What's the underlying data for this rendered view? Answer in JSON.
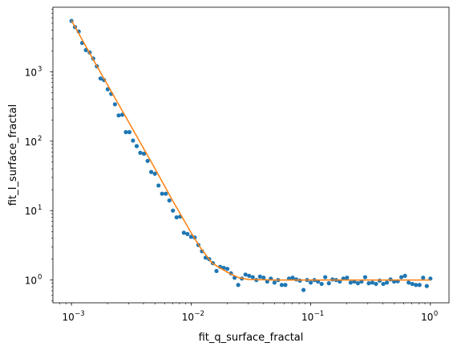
{
  "chart_data": {
    "type": "scatter",
    "xlabel": "fit_q_surface_fractal",
    "ylabel": "fit_I_surface_fractal",
    "xscale": "log",
    "yscale": "log",
    "xlim": [
      0.0007,
      1.43
    ],
    "ylim": [
      0.47,
      8500
    ],
    "grid": false,
    "legend": "none",
    "x_ticks": [
      {
        "value": 0.001,
        "base": "10",
        "exp": "−3"
      },
      {
        "value": 0.01,
        "base": "10",
        "exp": "−2"
      },
      {
        "value": 0.1,
        "base": "10",
        "exp": "−1"
      },
      {
        "value": 1,
        "base": "10",
        "exp": "0"
      }
    ],
    "y_ticks": [
      {
        "value": 1,
        "base": "10",
        "exp": "0"
      },
      {
        "value": 10,
        "base": "10",
        "exp": "1"
      },
      {
        "value": 100,
        "base": "10",
        "exp": "2"
      },
      {
        "value": 1000,
        "base": "10",
        "exp": "3"
      }
    ],
    "series": [
      {
        "style": "points",
        "color": "#1f77b4",
        "x": [
          0.001,
          0.00107,
          0.00115,
          0.00123,
          0.00132,
          0.00142,
          0.00152,
          0.00163,
          0.00175,
          0.00187,
          0.00201,
          0.00215,
          0.00231,
          0.00248,
          0.00266,
          0.00285,
          0.00305,
          0.00327,
          0.00351,
          0.00376,
          0.00404,
          0.00433,
          0.00464,
          0.00498,
          0.00534,
          0.00572,
          0.00614,
          0.00658,
          0.00705,
          0.00756,
          0.00811,
          0.0087,
          0.00933,
          0.01,
          0.01072,
          0.0115,
          0.01233,
          0.01322,
          0.01417,
          0.0152,
          0.0163,
          0.01748,
          0.01874,
          0.02009,
          0.02154,
          0.0231,
          0.02477,
          0.02656,
          0.02848,
          0.03054,
          0.03275,
          0.03511,
          0.03765,
          0.04037,
          0.04329,
          0.04642,
          0.04977,
          0.05337,
          0.05722,
          0.06136,
          0.06579,
          0.07055,
          0.07565,
          0.08111,
          0.08697,
          0.09326,
          0.1,
          0.10723,
          0.11498,
          0.12328,
          0.13219,
          0.14175,
          0.15199,
          0.16298,
          0.17475,
          0.18738,
          0.20092,
          0.21544,
          0.23101,
          0.24771,
          0.26561,
          0.2848,
          0.30539,
          0.32745,
          0.35112,
          0.37649,
          0.4037,
          0.43288,
          0.46416,
          0.4977,
          0.53367,
          0.57224,
          0.61359,
          0.65793,
          0.70548,
          0.75646,
          0.81113,
          0.86975,
          0.9326,
          1.0
        ],
        "y": [
          5400,
          4400,
          3800,
          2600,
          2050,
          1900,
          1550,
          1200,
          800,
          760,
          560,
          480,
          340,
          235,
          240,
          135,
          135,
          102,
          85,
          68,
          66,
          52,
          36,
          34,
          23,
          17.5,
          17.5,
          14,
          10,
          8,
          8.2,
          4.8,
          4.6,
          4.2,
          4.1,
          3.2,
          2.6,
          2.1,
          2.0,
          1.75,
          1.35,
          1.55,
          1.5,
          1.45,
          1.25,
          1.08,
          0.85,
          1.05,
          1.2,
          1.15,
          1.1,
          1.0,
          1.12,
          1.08,
          0.95,
          1.05,
          0.92,
          1.0,
          0.85,
          0.85,
          1.05,
          1.08,
          1.02,
          0.98,
          0.72,
          1.0,
          0.92,
          1.0,
          0.95,
          0.88,
          1.1,
          0.9,
          1.02,
          1.0,
          0.95,
          1.05,
          1.08,
          0.92,
          0.95,
          0.9,
          0.95,
          1.1,
          0.9,
          0.92,
          0.88,
          0.98,
          0.88,
          0.92,
          1.02,
          0.95,
          0.96,
          1.1,
          1.15,
          0.92,
          0.88,
          0.85,
          0.85,
          1.08,
          0.82,
          1.05
        ]
      },
      {
        "style": "line",
        "color": "#ff7f0e",
        "x": [
          0.001,
          0.0015,
          0.002,
          0.003,
          0.004,
          0.005,
          0.007,
          0.01,
          0.012,
          0.015,
          0.02,
          0.025,
          0.03,
          0.05,
          0.1,
          0.3,
          1.0
        ],
        "y": [
          5500,
          1560,
          650,
          190,
          79,
          40,
          14,
          4.8,
          2.9,
          1.75,
          1.3,
          1.08,
          1.02,
          1.0,
          1.0,
          1.0,
          1.0
        ]
      }
    ]
  }
}
